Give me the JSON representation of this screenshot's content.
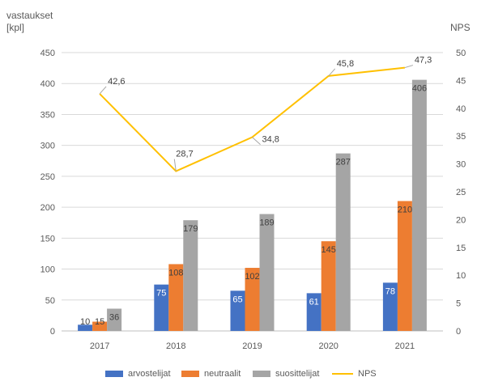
{
  "chart_data": {
    "type": "bar",
    "categories": [
      "2017",
      "2018",
      "2019",
      "2020",
      "2021"
    ],
    "series": [
      {
        "name": "arvostelijat",
        "color": "#4472C4",
        "values": [
          10,
          75,
          65,
          61,
          78
        ],
        "label_color": "#ffffff"
      },
      {
        "name": "neutraalit",
        "color": "#ED7D31",
        "values": [
          15,
          108,
          102,
          145,
          210
        ],
        "label_color": "#404040"
      },
      {
        "name": "suosittelijat",
        "color": "#A5A5A5",
        "values": [
          36,
          179,
          189,
          287,
          406
        ],
        "label_color": "#404040"
      }
    ],
    "line_series": {
      "name": "NPS",
      "color": "#FFC000",
      "axis": "right",
      "values": [
        42.6,
        28.7,
        34.8,
        45.8,
        47.3
      ],
      "labels": [
        "42,6",
        "28,7",
        "34,8",
        "45,8",
        "47,3"
      ]
    },
    "y_left": {
      "label_line1": "vastaukset",
      "label_line2": "[kpl]",
      "range": [
        0,
        450
      ],
      "ticks": [
        0,
        50,
        100,
        150,
        200,
        250,
        300,
        350,
        400,
        450
      ]
    },
    "y_right": {
      "label": "NPS",
      "range": [
        0,
        50
      ],
      "ticks": [
        0,
        5,
        10,
        15,
        20,
        25,
        30,
        35,
        40,
        45,
        50
      ]
    },
    "grid": true,
    "legend_position": "bottom"
  }
}
